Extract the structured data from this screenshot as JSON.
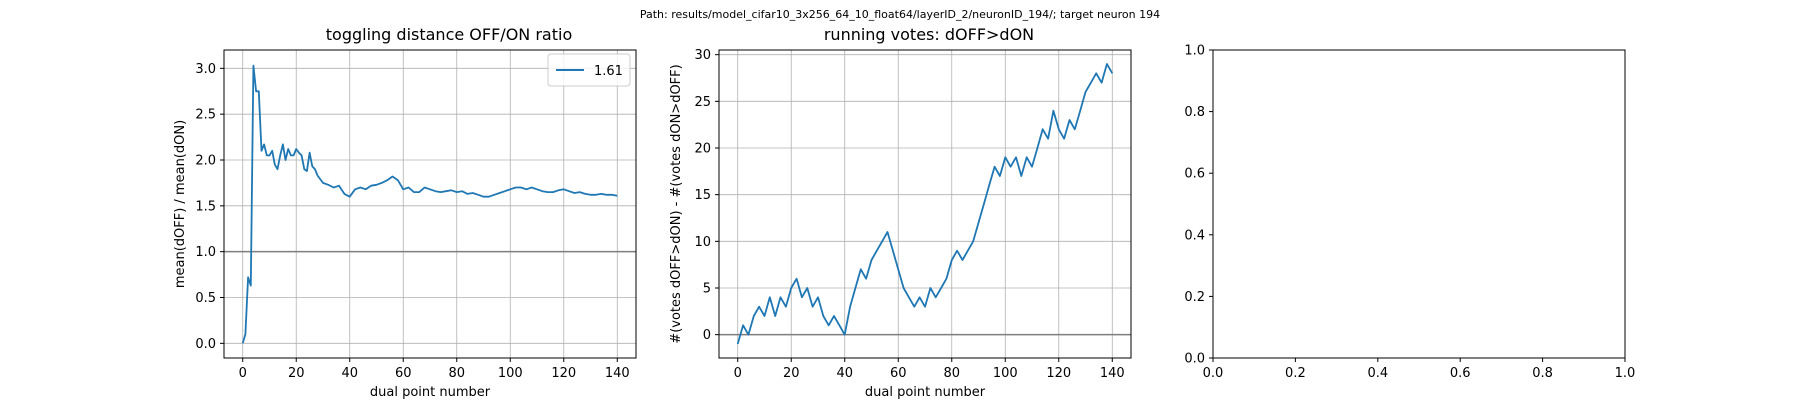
{
  "suptitle": "Path: results/model_cifar10_3x256_64_10_float64/layerID_2/neuronID_194/; target neuron 194",
  "chart_data": [
    {
      "type": "line",
      "title": "toggling distance OFF/ON ratio",
      "xlabel": "dual point number",
      "ylabel": "mean(dOFF) / mean(dON)",
      "xlim": [
        -7,
        147
      ],
      "ylim": [
        -0.16,
        3.2
      ],
      "xticks": [
        0,
        20,
        40,
        60,
        80,
        100,
        120,
        140
      ],
      "yticks": [
        0.0,
        0.5,
        1.0,
        1.5,
        2.0,
        2.5,
        3.0
      ],
      "grid": true,
      "legend": "top-right",
      "hline": 1.0,
      "line_color": "#1f77b4",
      "hline_color": "#7f7f7f",
      "series": [
        {
          "name": "1.61",
          "x": [
            0,
            1,
            2,
            3,
            4,
            5,
            6,
            7,
            8,
            9,
            10,
            11,
            12,
            13,
            14,
            15,
            16,
            17,
            18,
            19,
            20,
            21,
            22,
            23,
            24,
            25,
            26,
            27,
            28,
            30,
            32,
            34,
            36,
            38,
            40,
            42,
            44,
            46,
            48,
            50,
            52,
            54,
            56,
            58,
            60,
            62,
            64,
            66,
            68,
            70,
            72,
            74,
            76,
            78,
            80,
            82,
            84,
            86,
            88,
            90,
            92,
            94,
            96,
            98,
            100,
            102,
            104,
            106,
            108,
            110,
            112,
            114,
            116,
            118,
            120,
            122,
            124,
            126,
            128,
            130,
            132,
            134,
            136,
            138,
            140
          ],
          "y": [
            0.0,
            0.1,
            0.72,
            0.63,
            3.03,
            2.75,
            2.75,
            2.1,
            2.17,
            2.05,
            2.05,
            2.1,
            1.95,
            1.9,
            2.05,
            2.17,
            2.0,
            2.12,
            2.05,
            2.05,
            2.12,
            2.08,
            2.05,
            1.9,
            1.88,
            2.08,
            1.93,
            1.9,
            1.83,
            1.75,
            1.73,
            1.7,
            1.72,
            1.63,
            1.6,
            1.68,
            1.7,
            1.68,
            1.72,
            1.73,
            1.75,
            1.78,
            1.82,
            1.78,
            1.68,
            1.7,
            1.65,
            1.65,
            1.7,
            1.68,
            1.66,
            1.65,
            1.66,
            1.67,
            1.65,
            1.66,
            1.63,
            1.64,
            1.62,
            1.6,
            1.6,
            1.62,
            1.64,
            1.66,
            1.68,
            1.7,
            1.7,
            1.68,
            1.7,
            1.68,
            1.66,
            1.65,
            1.65,
            1.67,
            1.68,
            1.66,
            1.64,
            1.65,
            1.63,
            1.62,
            1.62,
            1.63,
            1.62,
            1.62,
            1.61
          ]
        }
      ]
    },
    {
      "type": "line",
      "title": "running votes: dOFF>dON",
      "xlabel": "dual point number",
      "ylabel": "#(votes dOFF>dON) - #(votes dON>dOFF)",
      "xlim": [
        -7,
        147
      ],
      "ylim": [
        -2.5,
        30.5
      ],
      "xticks": [
        0,
        20,
        40,
        60,
        80,
        100,
        120,
        140
      ],
      "yticks": [
        0,
        5,
        10,
        15,
        20,
        25,
        30
      ],
      "grid": true,
      "hline": 0,
      "line_color": "#1f77b4",
      "hline_color": "#7f7f7f",
      "series": [
        {
          "name": "",
          "x": [
            0,
            2,
            4,
            6,
            8,
            10,
            12,
            14,
            16,
            18,
            20,
            22,
            24,
            26,
            28,
            30,
            32,
            34,
            36,
            38,
            40,
            42,
            44,
            46,
            48,
            50,
            52,
            54,
            56,
            58,
            60,
            62,
            64,
            66,
            68,
            70,
            72,
            74,
            76,
            78,
            80,
            82,
            84,
            86,
            88,
            90,
            92,
            94,
            96,
            98,
            100,
            102,
            104,
            106,
            108,
            110,
            112,
            114,
            116,
            118,
            120,
            122,
            124,
            126,
            128,
            130,
            132,
            134,
            136,
            138,
            140
          ],
          "y": [
            -1,
            1,
            0,
            2,
            3,
            2,
            4,
            2,
            4,
            3,
            5,
            6,
            4,
            5,
            3,
            4,
            2,
            1,
            2,
            1,
            0,
            3,
            5,
            7,
            6,
            8,
            9,
            10,
            11,
            9,
            7,
            5,
            4,
            3,
            4,
            3,
            5,
            4,
            5,
            6,
            8,
            9,
            8,
            9,
            10,
            12,
            14,
            16,
            18,
            17,
            19,
            18,
            19,
            17,
            19,
            18,
            20,
            22,
            21,
            24,
            22,
            21,
            23,
            22,
            24,
            26,
            27,
            28,
            27,
            29,
            28
          ]
        }
      ]
    },
    {
      "type": "line",
      "title": "",
      "xlabel": "",
      "ylabel": "",
      "xlim": [
        0,
        1
      ],
      "ylim": [
        0,
        1
      ],
      "xticks": [
        0.0,
        0.2,
        0.4,
        0.6,
        0.8,
        1.0
      ],
      "yticks": [
        0.0,
        0.2,
        0.4,
        0.6,
        0.8,
        1.0
      ],
      "xtick_labels": [
        "0.0",
        "0.2",
        "0.4",
        "0.6",
        "0.8",
        "1.0"
      ],
      "ytick_labels": [
        "0.0",
        "0.2",
        "0.4",
        "0.6",
        "0.8",
        "1.0"
      ],
      "grid": false,
      "series": []
    }
  ]
}
